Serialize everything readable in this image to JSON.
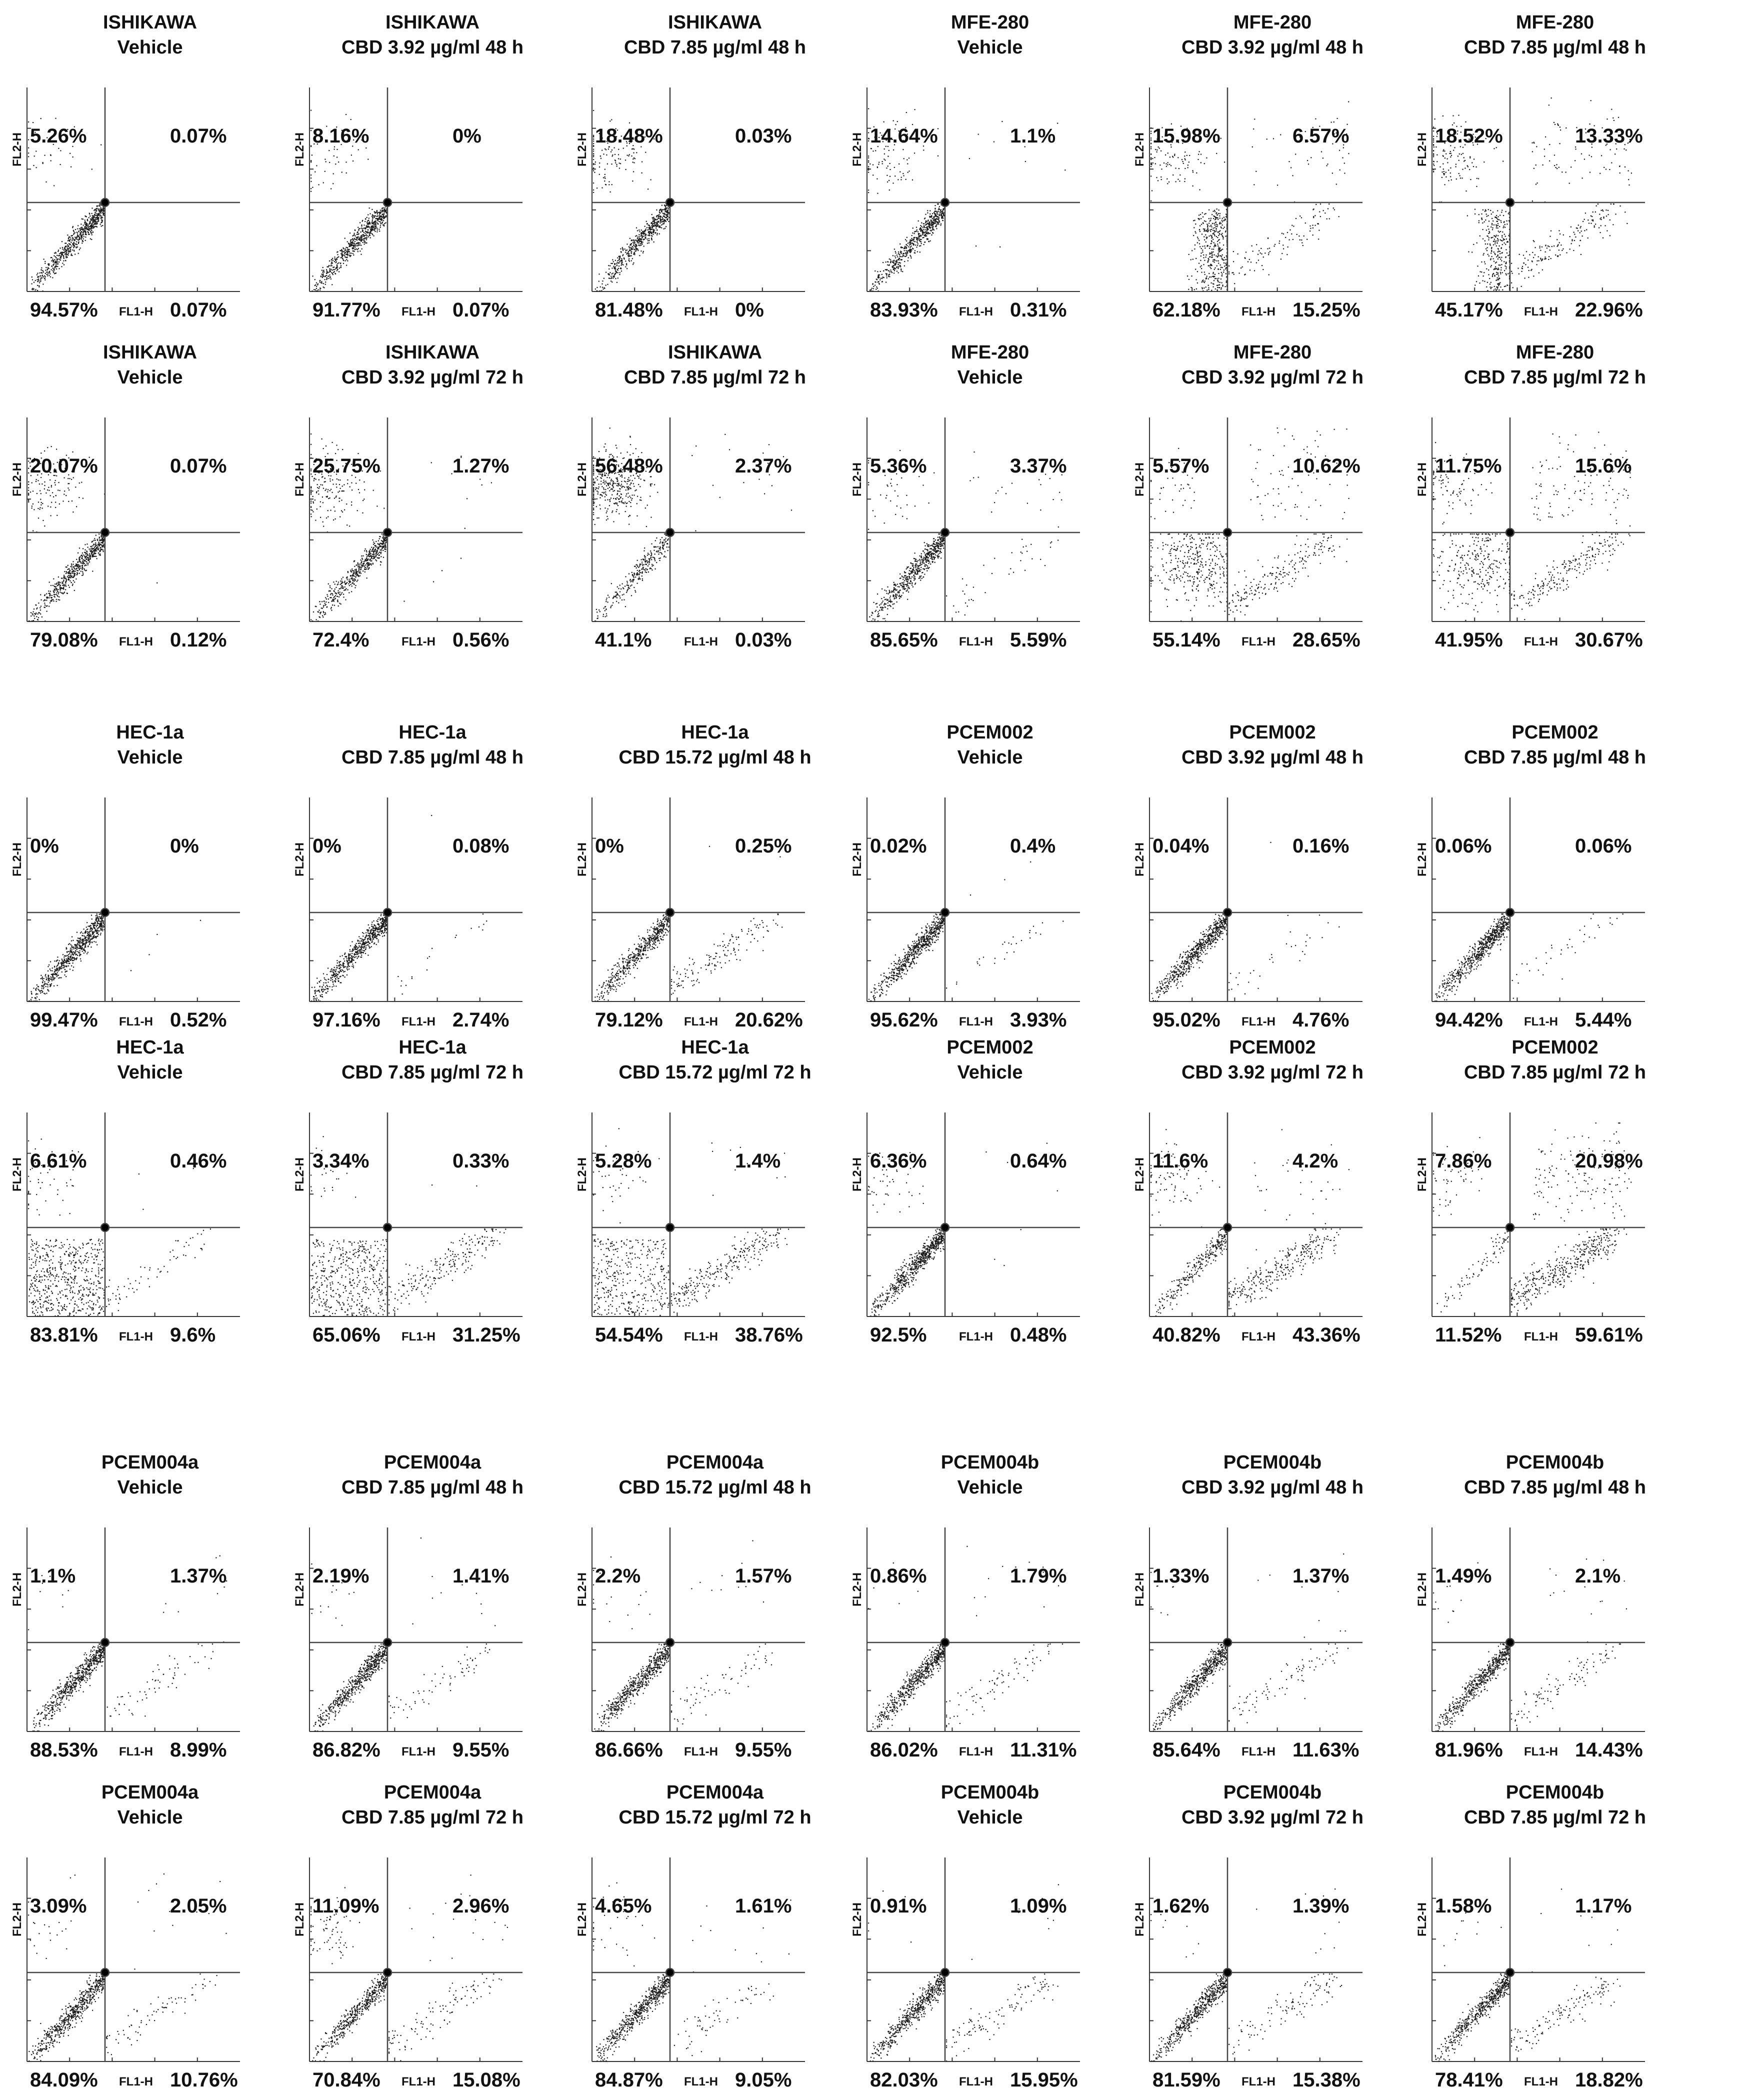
{
  "chart_data": [
    {
      "type": "scatter",
      "title": [
        "ISHIKAWA",
        "Vehicle"
      ],
      "xlabel": "FL1-H",
      "ylabel": "FL2-H",
      "quadrants": {
        "UL": "5.26%",
        "UR": "0.07%",
        "LL": "94.57%",
        "LR": "0.07%"
      }
    },
    {
      "type": "scatter",
      "title": [
        "ISHIKAWA",
        "CBD 3.92 µg/ml 48 h"
      ],
      "xlabel": "FL1-H",
      "ylabel": "FL2-H",
      "quadrants": {
        "UL": "8.16%",
        "UR": "0%",
        "LL": "91.77%",
        "LR": "0.07%"
      }
    },
    {
      "type": "scatter",
      "title": [
        "ISHIKAWA",
        "CBD 7.85 µg/ml 48 h"
      ],
      "xlabel": "FL1-H",
      "ylabel": "FL2-H",
      "quadrants": {
        "UL": "18.48%",
        "UR": "0.03%",
        "LL": "81.48%",
        "LR": "0%"
      }
    },
    {
      "type": "scatter",
      "title": [
        "MFE-280",
        "Vehicle"
      ],
      "xlabel": "FL1-H",
      "ylabel": "FL2-H",
      "quadrants": {
        "UL": "14.64%",
        "UR": "1.1%",
        "LL": "83.93%",
        "LR": "0.31%"
      }
    },
    {
      "type": "scatter",
      "title": [
        "MFE-280",
        "CBD 3.92 µg/ml 48 h"
      ],
      "xlabel": "FL1-H",
      "ylabel": "FL2-H",
      "quadrants": {
        "UL": "15.98%",
        "UR": "6.57%",
        "LL": "62.18%",
        "LR": "15.25%"
      }
    },
    {
      "type": "scatter",
      "title": [
        "MFE-280",
        "CBD 7.85 µg/ml 48 h"
      ],
      "xlabel": "FL1-H",
      "ylabel": "FL2-H",
      "quadrants": {
        "UL": "18.52%",
        "UR": "13.33%",
        "LL": "45.17%",
        "LR": "22.96%"
      }
    },
    {
      "type": "scatter",
      "title": [
        "ISHIKAWA",
        "Vehicle"
      ],
      "xlabel": "FL1-H",
      "ylabel": "FL2-H",
      "quadrants": {
        "UL": "20.07%",
        "UR": "0.07%",
        "LL": "79.08%",
        "LR": "0.12%"
      }
    },
    {
      "type": "scatter",
      "title": [
        "ISHIKAWA",
        "CBD 3.92 µg/ml 72 h"
      ],
      "xlabel": "FL1-H",
      "ylabel": "FL2-H",
      "quadrants": {
        "UL": "25.75%",
        "UR": "1.27%",
        "LL": "72.4%",
        "LR": "0.56%"
      }
    },
    {
      "type": "scatter",
      "title": [
        "ISHIKAWA",
        "CBD 7.85 µg/ml 72 h"
      ],
      "xlabel": "FL1-H",
      "ylabel": "FL2-H",
      "quadrants": {
        "UL": "56.48%",
        "UR": "2.37%",
        "LL": "41.1%",
        "LR": "0.03%"
      }
    },
    {
      "type": "scatter",
      "title": [
        "MFE-280",
        "Vehicle"
      ],
      "xlabel": "FL1-H",
      "ylabel": "FL2-H",
      "quadrants": {
        "UL": "5.36%",
        "UR": "3.37%",
        "LL": "85.65%",
        "LR": "5.59%"
      }
    },
    {
      "type": "scatter",
      "title": [
        "MFE-280",
        "CBD 3.92 µg/ml 72 h"
      ],
      "xlabel": "FL1-H",
      "ylabel": "FL2-H",
      "quadrants": {
        "UL": "5.57%",
        "UR": "10.62%",
        "LL": "55.14%",
        "LR": "28.65%"
      }
    },
    {
      "type": "scatter",
      "title": [
        "MFE-280",
        "CBD 7.85 µg/ml 72 h"
      ],
      "xlabel": "FL1-H",
      "ylabel": "FL2-H",
      "quadrants": {
        "UL": "11.75%",
        "UR": "15.6%",
        "LL": "41.95%",
        "LR": "30.67%"
      }
    },
    {
      "type": "scatter",
      "title": [
        "HEC-1a",
        "Vehicle"
      ],
      "xlabel": "FL1-H",
      "ylabel": "FL2-H",
      "quadrants": {
        "UL": "0%",
        "UR": "0%",
        "LL": "99.47%",
        "LR": "0.52%"
      }
    },
    {
      "type": "scatter",
      "title": [
        "HEC-1a",
        "CBD 7.85 µg/ml 48 h"
      ],
      "xlabel": "FL1-H",
      "ylabel": "FL2-H",
      "quadrants": {
        "UL": "0%",
        "UR": "0.08%",
        "LL": "97.16%",
        "LR": "2.74%"
      }
    },
    {
      "type": "scatter",
      "title": [
        "HEC-1a",
        "CBD 15.72 µg/ml 48 h"
      ],
      "xlabel": "FL1-H",
      "ylabel": "FL2-H",
      "quadrants": {
        "UL": "0%",
        "UR": "0.25%",
        "LL": "79.12%",
        "LR": "20.62%"
      }
    },
    {
      "type": "scatter",
      "title": [
        "PCEM002",
        "Vehicle"
      ],
      "xlabel": "FL1-H",
      "ylabel": "FL2-H",
      "quadrants": {
        "UL": "0.02%",
        "UR": "0.4%",
        "LL": "95.62%",
        "LR": "3.93%"
      }
    },
    {
      "type": "scatter",
      "title": [
        "PCEM002",
        "CBD 3.92 µg/ml 48 h"
      ],
      "xlabel": "FL1-H",
      "ylabel": "FL2-H",
      "quadrants": {
        "UL": "0.04%",
        "UR": "0.16%",
        "LL": "95.02%",
        "LR": "4.76%"
      }
    },
    {
      "type": "scatter",
      "title": [
        "PCEM002",
        "CBD 7.85 µg/ml 48 h"
      ],
      "xlabel": "FL1-H",
      "ylabel": "FL2-H",
      "quadrants": {
        "UL": "0.06%",
        "UR": "0.06%",
        "LL": "94.42%",
        "LR": "5.44%"
      }
    },
    {
      "type": "scatter",
      "title": [
        "HEC-1a",
        "Vehicle"
      ],
      "xlabel": "FL1-H",
      "ylabel": "FL2-H",
      "quadrants": {
        "UL": "6.61%",
        "UR": "0.46%",
        "LL": "83.81%",
        "LR": "9.6%"
      }
    },
    {
      "type": "scatter",
      "title": [
        "HEC-1a",
        "CBD 7.85 µg/ml 72 h"
      ],
      "xlabel": "FL1-H",
      "ylabel": "FL2-H",
      "quadrants": {
        "UL": "3.34%",
        "UR": "0.33%",
        "LL": "65.06%",
        "LR": "31.25%"
      }
    },
    {
      "type": "scatter",
      "title": [
        "HEC-1a",
        "CBD 15.72 µg/ml 72 h"
      ],
      "xlabel": "FL1-H",
      "ylabel": "FL2-H",
      "quadrants": {
        "UL": "5.28%",
        "UR": "1.4%",
        "LL": "54.54%",
        "LR": "38.76%"
      }
    },
    {
      "type": "scatter",
      "title": [
        "PCEM002",
        "Vehicle"
      ],
      "xlabel": "FL1-H",
      "ylabel": "FL2-H",
      "quadrants": {
        "UL": "6.36%",
        "UR": "0.64%",
        "LL": "92.5%",
        "LR": "0.48%"
      }
    },
    {
      "type": "scatter",
      "title": [
        "PCEM002",
        "CBD 3.92 µg/ml 72 h"
      ],
      "xlabel": "FL1-H",
      "ylabel": "FL2-H",
      "quadrants": {
        "UL": "11.6%",
        "UR": "4.2%",
        "LL": "40.82%",
        "LR": "43.36%"
      }
    },
    {
      "type": "scatter",
      "title": [
        "PCEM002",
        "CBD 7.85 µg/ml 72 h"
      ],
      "xlabel": "FL1-H",
      "ylabel": "FL2-H",
      "quadrants": {
        "UL": "7.86%",
        "UR": "20.98%",
        "LL": "11.52%",
        "LR": "59.61%"
      }
    },
    {
      "type": "scatter",
      "title": [
        "PCEM004a",
        "Vehicle"
      ],
      "xlabel": "FL1-H",
      "ylabel": "FL2-H",
      "quadrants": {
        "UL": "1.1%",
        "UR": "1.37%",
        "LL": "88.53%",
        "LR": "8.99%"
      }
    },
    {
      "type": "scatter",
      "title": [
        "PCEM004a",
        "CBD 7.85 µg/ml 48 h"
      ],
      "xlabel": "FL1-H",
      "ylabel": "FL2-H",
      "quadrants": {
        "UL": "2.19%",
        "UR": "1.41%",
        "LL": "86.82%",
        "LR": "9.55%"
      }
    },
    {
      "type": "scatter",
      "title": [
        "PCEM004a",
        "CBD 15.72 µg/ml 48 h"
      ],
      "xlabel": "FL1-H",
      "ylabel": "FL2-H",
      "quadrants": {
        "UL": "2.2%",
        "UR": "1.57%",
        "LL": "86.66%",
        "LR": "9.55%"
      }
    },
    {
      "type": "scatter",
      "title": [
        "PCEM004b",
        "Vehicle"
      ],
      "xlabel": "FL1-H",
      "ylabel": "FL2-H",
      "quadrants": {
        "UL": "0.86%",
        "UR": "1.79%",
        "LL": "86.02%",
        "LR": "11.31%"
      }
    },
    {
      "type": "scatter",
      "title": [
        "PCEM004b",
        "CBD 3.92 µg/ml 48 h"
      ],
      "xlabel": "FL1-H",
      "ylabel": "FL2-H",
      "quadrants": {
        "UL": "1.33%",
        "UR": "1.37%",
        "LL": "85.64%",
        "LR": "11.63%"
      }
    },
    {
      "type": "scatter",
      "title": [
        "PCEM004b",
        "CBD 7.85 µg/ml 48 h"
      ],
      "xlabel": "FL1-H",
      "ylabel": "FL2-H",
      "quadrants": {
        "UL": "1.49%",
        "UR": "2.1%",
        "LL": "81.96%",
        "LR": "14.43%"
      }
    },
    {
      "type": "scatter",
      "title": [
        "PCEM004a",
        "Vehicle"
      ],
      "xlabel": "FL1-H",
      "ylabel": "FL2-H",
      "quadrants": {
        "UL": "3.09%",
        "UR": "2.05%",
        "LL": "84.09%",
        "LR": "10.76%"
      }
    },
    {
      "type": "scatter",
      "title": [
        "PCEM004a",
        "CBD 7.85 µg/ml 72 h"
      ],
      "xlabel": "FL1-H",
      "ylabel": "FL2-H",
      "quadrants": {
        "UL": "11.09%",
        "UR": "2.96%",
        "LL": "70.84%",
        "LR": "15.08%"
      }
    },
    {
      "type": "scatter",
      "title": [
        "PCEM004a",
        "CBD 15.72 µg/ml 72 h"
      ],
      "xlabel": "FL1-H",
      "ylabel": "FL2-H",
      "quadrants": {
        "UL": "4.65%",
        "UR": "1.61%",
        "LL": "84.87%",
        "LR": "9.05%"
      }
    },
    {
      "type": "scatter",
      "title": [
        "PCEM004b",
        "Vehicle"
      ],
      "xlabel": "FL1-H",
      "ylabel": "FL2-H",
      "quadrants": {
        "UL": "0.91%",
        "UR": "1.09%",
        "LL": "82.03%",
        "LR": "15.95%"
      }
    },
    {
      "type": "scatter",
      "title": [
        "PCEM004b",
        "CBD 3.92 µg/ml 72 h"
      ],
      "xlabel": "FL1-H",
      "ylabel": "FL2-H",
      "quadrants": {
        "UL": "1.62%",
        "UR": "1.39%",
        "LL": "81.59%",
        "LR": "15.38%"
      }
    },
    {
      "type": "scatter",
      "title": [
        "PCEM004b",
        "CBD 7.85 µg/ml 72 h"
      ],
      "xlabel": "FL1-H",
      "ylabel": "FL2-H",
      "quadrants": {
        "UL": "1.58%",
        "UR": "1.17%",
        "LL": "78.41%",
        "LR": "18.82%"
      }
    }
  ]
}
